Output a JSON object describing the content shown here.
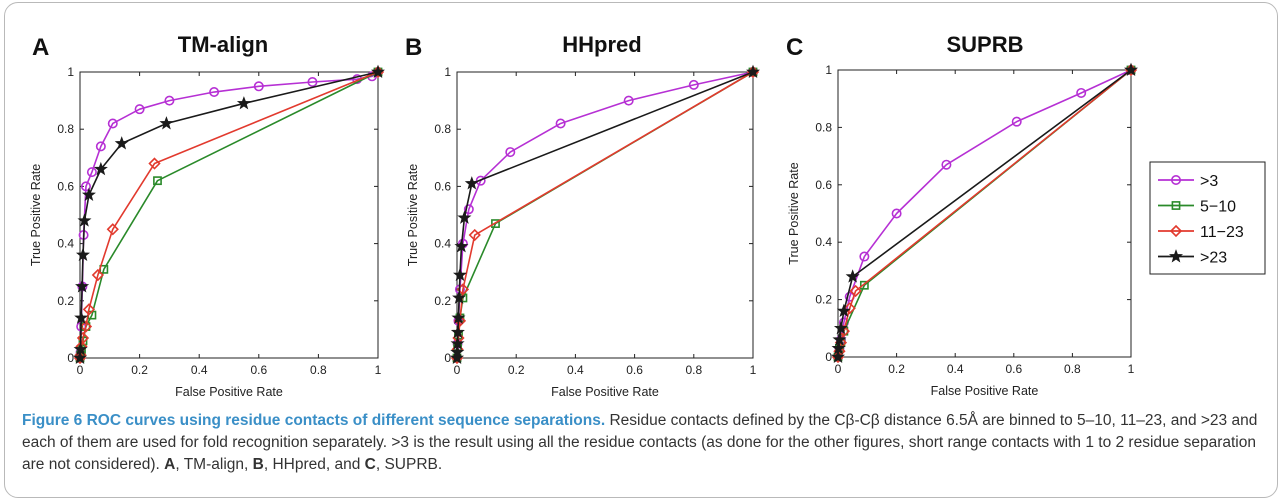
{
  "chart_data": [
    {
      "type": "line",
      "panel_label": "A",
      "title": "TM-align",
      "xlabel": "False Positive Rate",
      "ylabel": "True Positive Rate",
      "xlim": [
        0,
        1
      ],
      "ylim": [
        0,
        1
      ],
      "xticks": [
        "0",
        "0.2",
        "0.4",
        "0.6",
        "0.8",
        "1"
      ],
      "yticks": [
        "0",
        "0.2",
        "0.4",
        "0.6",
        "0.8",
        "1"
      ],
      "grid": false,
      "series": [
        {
          "name": ">3",
          "marker": "circle",
          "color": "#b630d4",
          "x": [
            0,
            0.002,
            0.004,
            0.008,
            0.012,
            0.02,
            0.04,
            0.07,
            0.11,
            0.2,
            0.3,
            0.45,
            0.6,
            0.78,
            0.93,
            0.98,
            1
          ],
          "y": [
            0,
            0.02,
            0.11,
            0.25,
            0.43,
            0.6,
            0.65,
            0.74,
            0.82,
            0.87,
            0.9,
            0.93,
            0.95,
            0.965,
            0.975,
            0.985,
            1
          ]
        },
        {
          "name": "5−10",
          "marker": "square",
          "color": "#2a8a2a",
          "x": [
            0,
            0.002,
            0.005,
            0.01,
            0.02,
            0.04,
            0.08,
            0.26,
            1
          ],
          "y": [
            0,
            0.01,
            0.03,
            0.06,
            0.11,
            0.15,
            0.31,
            0.62,
            1
          ]
        },
        {
          "name": "11−23",
          "marker": "diamond",
          "color": "#e23a2e",
          "x": [
            0,
            0.002,
            0.005,
            0.01,
            0.02,
            0.03,
            0.06,
            0.11,
            0.25,
            1
          ],
          "y": [
            0,
            0.01,
            0.04,
            0.07,
            0.11,
            0.17,
            0.29,
            0.45,
            0.68,
            1
          ]
        },
        {
          "name": ">23",
          "marker": "star",
          "color": "#1a1a1a",
          "x": [
            0,
            0.002,
            0.004,
            0.007,
            0.01,
            0.015,
            0.03,
            0.07,
            0.14,
            0.29,
            0.55,
            1
          ],
          "y": [
            0,
            0.03,
            0.14,
            0.25,
            0.36,
            0.48,
            0.57,
            0.66,
            0.75,
            0.82,
            0.89,
            1
          ]
        }
      ]
    },
    {
      "type": "line",
      "panel_label": "B",
      "title": "HHpred",
      "xlabel": "False Positive Rate",
      "ylabel": "True Positive Rate",
      "xlim": [
        0,
        1
      ],
      "ylim": [
        0,
        1
      ],
      "xticks": [
        "0",
        "0.2",
        "0.4",
        "0.6",
        "0.8",
        "1"
      ],
      "yticks": [
        "0",
        "0.2",
        "0.4",
        "0.6",
        "0.8",
        "1"
      ],
      "grid": false,
      "series": [
        {
          "name": ">3",
          "marker": "circle",
          "color": "#b630d4",
          "x": [
            0,
            0.002,
            0.005,
            0.01,
            0.02,
            0.04,
            0.08,
            0.18,
            0.35,
            0.58,
            0.8,
            1
          ],
          "y": [
            0,
            0.05,
            0.13,
            0.24,
            0.4,
            0.52,
            0.62,
            0.72,
            0.82,
            0.9,
            0.955,
            1
          ]
        },
        {
          "name": "5−10",
          "marker": "square",
          "color": "#2a8a2a",
          "x": [
            0,
            0.002,
            0.005,
            0.01,
            0.02,
            0.13,
            1
          ],
          "y": [
            0,
            0.04,
            0.08,
            0.14,
            0.21,
            0.47,
            1
          ]
        },
        {
          "name": "11−23",
          "marker": "diamond",
          "color": "#e23a2e",
          "x": [
            0,
            0.002,
            0.005,
            0.01,
            0.02,
            0.06,
            1
          ],
          "y": [
            0,
            0.03,
            0.07,
            0.13,
            0.24,
            0.43,
            1
          ]
        },
        {
          "name": ">23",
          "marker": "star",
          "color": "#1a1a1a",
          "x": [
            0,
            0.001,
            0.002,
            0.003,
            0.005,
            0.007,
            0.01,
            0.015,
            0.025,
            0.05,
            1
          ],
          "y": [
            0,
            0.02,
            0.05,
            0.09,
            0.14,
            0.21,
            0.29,
            0.39,
            0.49,
            0.61,
            1
          ]
        }
      ]
    },
    {
      "type": "line",
      "panel_label": "C",
      "title": "SUPRB",
      "xlabel": "False Positive Rate",
      "ylabel": "True Positive Rate",
      "xlim": [
        0,
        1
      ],
      "ylim": [
        0,
        1
      ],
      "xticks": [
        "0",
        "0.2",
        "0.4",
        "0.6",
        "0.8",
        "1"
      ],
      "yticks": [
        "0",
        "0.2",
        "0.4",
        "0.6",
        "0.8",
        "1"
      ],
      "grid": false,
      "legend_position": "right",
      "series": [
        {
          "name": ">3",
          "marker": "circle",
          "color": "#b630d4",
          "x": [
            0,
            0.005,
            0.01,
            0.02,
            0.04,
            0.09,
            0.2,
            0.37,
            0.61,
            0.83,
            1
          ],
          "y": [
            0,
            0.03,
            0.06,
            0.12,
            0.21,
            0.35,
            0.5,
            0.67,
            0.82,
            0.92,
            1
          ]
        },
        {
          "name": "5−10",
          "marker": "square",
          "color": "#2a8a2a",
          "x": [
            0,
            0.005,
            0.01,
            0.02,
            0.09,
            1
          ],
          "y": [
            0,
            0.03,
            0.05,
            0.09,
            0.25,
            1
          ]
        },
        {
          "name": "11−23",
          "marker": "diamond",
          "color": "#e23a2e",
          "x": [
            0,
            0.005,
            0.01,
            0.02,
            0.04,
            0.06,
            1
          ],
          "y": [
            0,
            0.02,
            0.05,
            0.09,
            0.17,
            0.23,
            1
          ]
        },
        {
          "name": ">23",
          "marker": "star",
          "color": "#1a1a1a",
          "x": [
            0,
            0.002,
            0.005,
            0.01,
            0.02,
            0.05,
            1
          ],
          "y": [
            0,
            0.03,
            0.06,
            0.1,
            0.16,
            0.28,
            1
          ]
        }
      ]
    }
  ],
  "caption": {
    "label": "Figure 6 ROC curves using residue contacts of different sequence separations.",
    "text_1": " Residue contacts defined by the Cβ-Cβ distance 6.5Å are binned to 5–10, 11–23, and >23 and each of them are used for fold recognition separately. >3 is the result using all the residue contacts (as done for the other figures, short range contacts with 1 to 2 residue separation are not considered). ",
    "ref_a": "A",
    "text_a": ", TM-align, ",
    "ref_b": "B",
    "text_b": ", HHpred, and ",
    "ref_c": "C",
    "text_c": ", SUPRB."
  }
}
